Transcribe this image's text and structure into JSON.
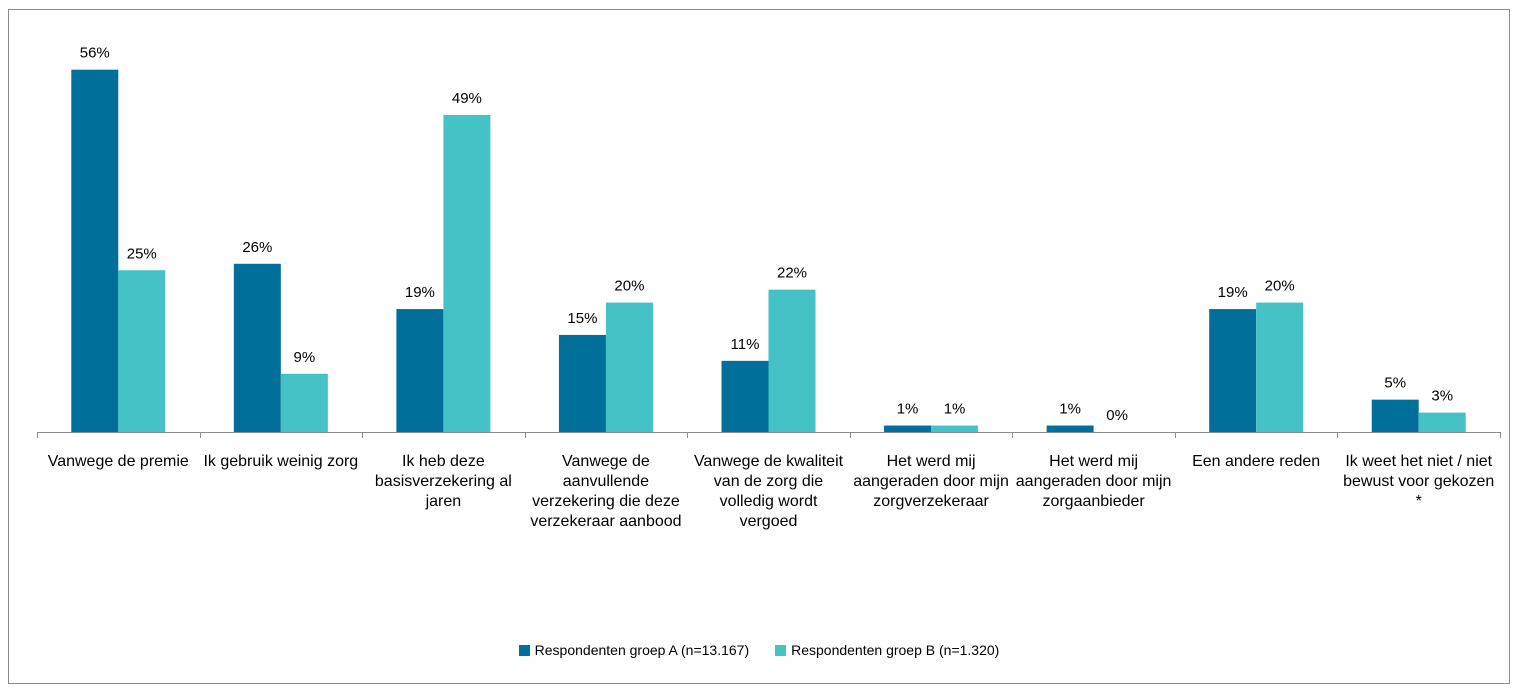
{
  "chart_data": {
    "type": "bar",
    "categories": [
      "Vanwege de premie",
      "Ik gebruik weinig zorg",
      "Ik heb deze basisverzekering al jaren",
      "Vanwege de aanvullende verzekering die deze verzekeraar aanbood",
      "Vanwege de kwaliteit van de zorg die volledig wordt vergoed",
      "Het werd mij aangeraden door mijn zorgverzekeraar",
      "Het werd mij aangeraden door mijn zorgaanbieder",
      "Een andere reden",
      "Ik weet het niet / niet bewust voor gekozen *"
    ],
    "series": [
      {
        "name": "Respondenten groep A (n=13.167)",
        "color": "#00709b",
        "values": [
          56,
          26,
          19,
          15,
          11,
          1,
          1,
          19,
          5
        ],
        "value_labels": [
          "56%",
          "26%",
          "19%",
          "15%",
          "11%",
          "1%",
          "1%",
          "19%",
          "5%"
        ]
      },
      {
        "name": "Respondenten groep B (n=1.320)",
        "color": "#45c2c6",
        "values": [
          25,
          9,
          49,
          20,
          22,
          1,
          0,
          20,
          3
        ],
        "value_labels": [
          "25%",
          "9%",
          "49%",
          "20%",
          "22%",
          "1%",
          "0%",
          "20%",
          "3%"
        ]
      }
    ],
    "legend": "bottom"
  }
}
